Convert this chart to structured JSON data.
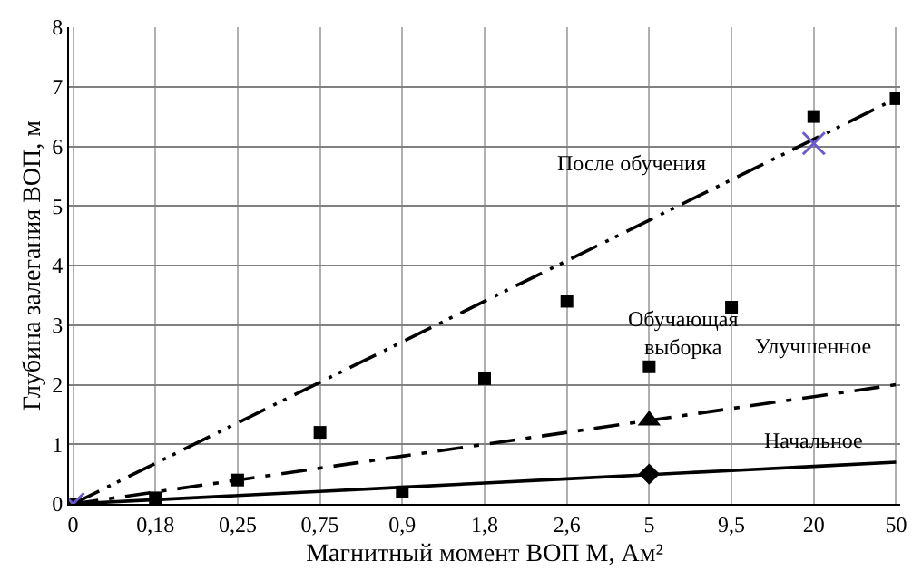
{
  "chart_data": {
    "type": "line",
    "xlabel": "Магнитный момент ВОП M, Ам²",
    "ylabel": "Глубина залегания ВОП, м",
    "categories": [
      "0",
      "0,18",
      "0,25",
      "0,75",
      "0,9",
      "1,8",
      "2,6",
      "5",
      "9,5",
      "20",
      "50"
    ],
    "ylim": [
      0,
      8
    ],
    "yticks": [
      0,
      1,
      2,
      3,
      4,
      5,
      6,
      7,
      8
    ],
    "grid": true,
    "series": [
      {
        "name": "После обучения",
        "type": "line",
        "color": "#000000",
        "line_style": "dashed",
        "marker": "none",
        "values": [
          0,
          0.68,
          1.36,
          2.04,
          2.72,
          3.4,
          4.08,
          4.76,
          5.44,
          6.12,
          6.8
        ]
      },
      {
        "name": "Улучшенное",
        "type": "line",
        "color": "#000000",
        "line_style": "dashed",
        "marker": "none",
        "values": [
          0,
          0.2,
          0.4,
          0.6,
          0.8,
          1.0,
          1.2,
          1.4,
          1.6,
          1.8,
          2.0
        ]
      },
      {
        "name": "Начальное",
        "type": "line",
        "color": "#000000",
        "line_style": "solid",
        "marker": "none",
        "values": [
          0,
          0.07,
          0.14,
          0.21,
          0.28,
          0.35,
          0.42,
          0.49,
          0.56,
          0.63,
          0.7
        ]
      },
      {
        "name": "Обучающая выборка",
        "type": "scatter",
        "color": "#000000",
        "marker": "square",
        "values": [
          0,
          0.1,
          0.4,
          1.2,
          0.2,
          2.1,
          3.4,
          2.3,
          3.3,
          6.5,
          6.8
        ]
      },
      {
        "type": "scatter",
        "color": "#000000",
        "marker": "triangle",
        "values": [
          null,
          null,
          null,
          null,
          null,
          null,
          null,
          1.4,
          null,
          null,
          null
        ]
      },
      {
        "type": "scatter",
        "color": "#000000",
        "marker": "diamond",
        "values": [
          null,
          null,
          null,
          null,
          null,
          null,
          null,
          0.5,
          null,
          null,
          null
        ]
      },
      {
        "type": "scatter",
        "color": "#6a5acd",
        "marker": "cross",
        "values": [
          0,
          null,
          null,
          null,
          null,
          null,
          null,
          null,
          null,
          6.05,
          null
        ]
      }
    ]
  }
}
